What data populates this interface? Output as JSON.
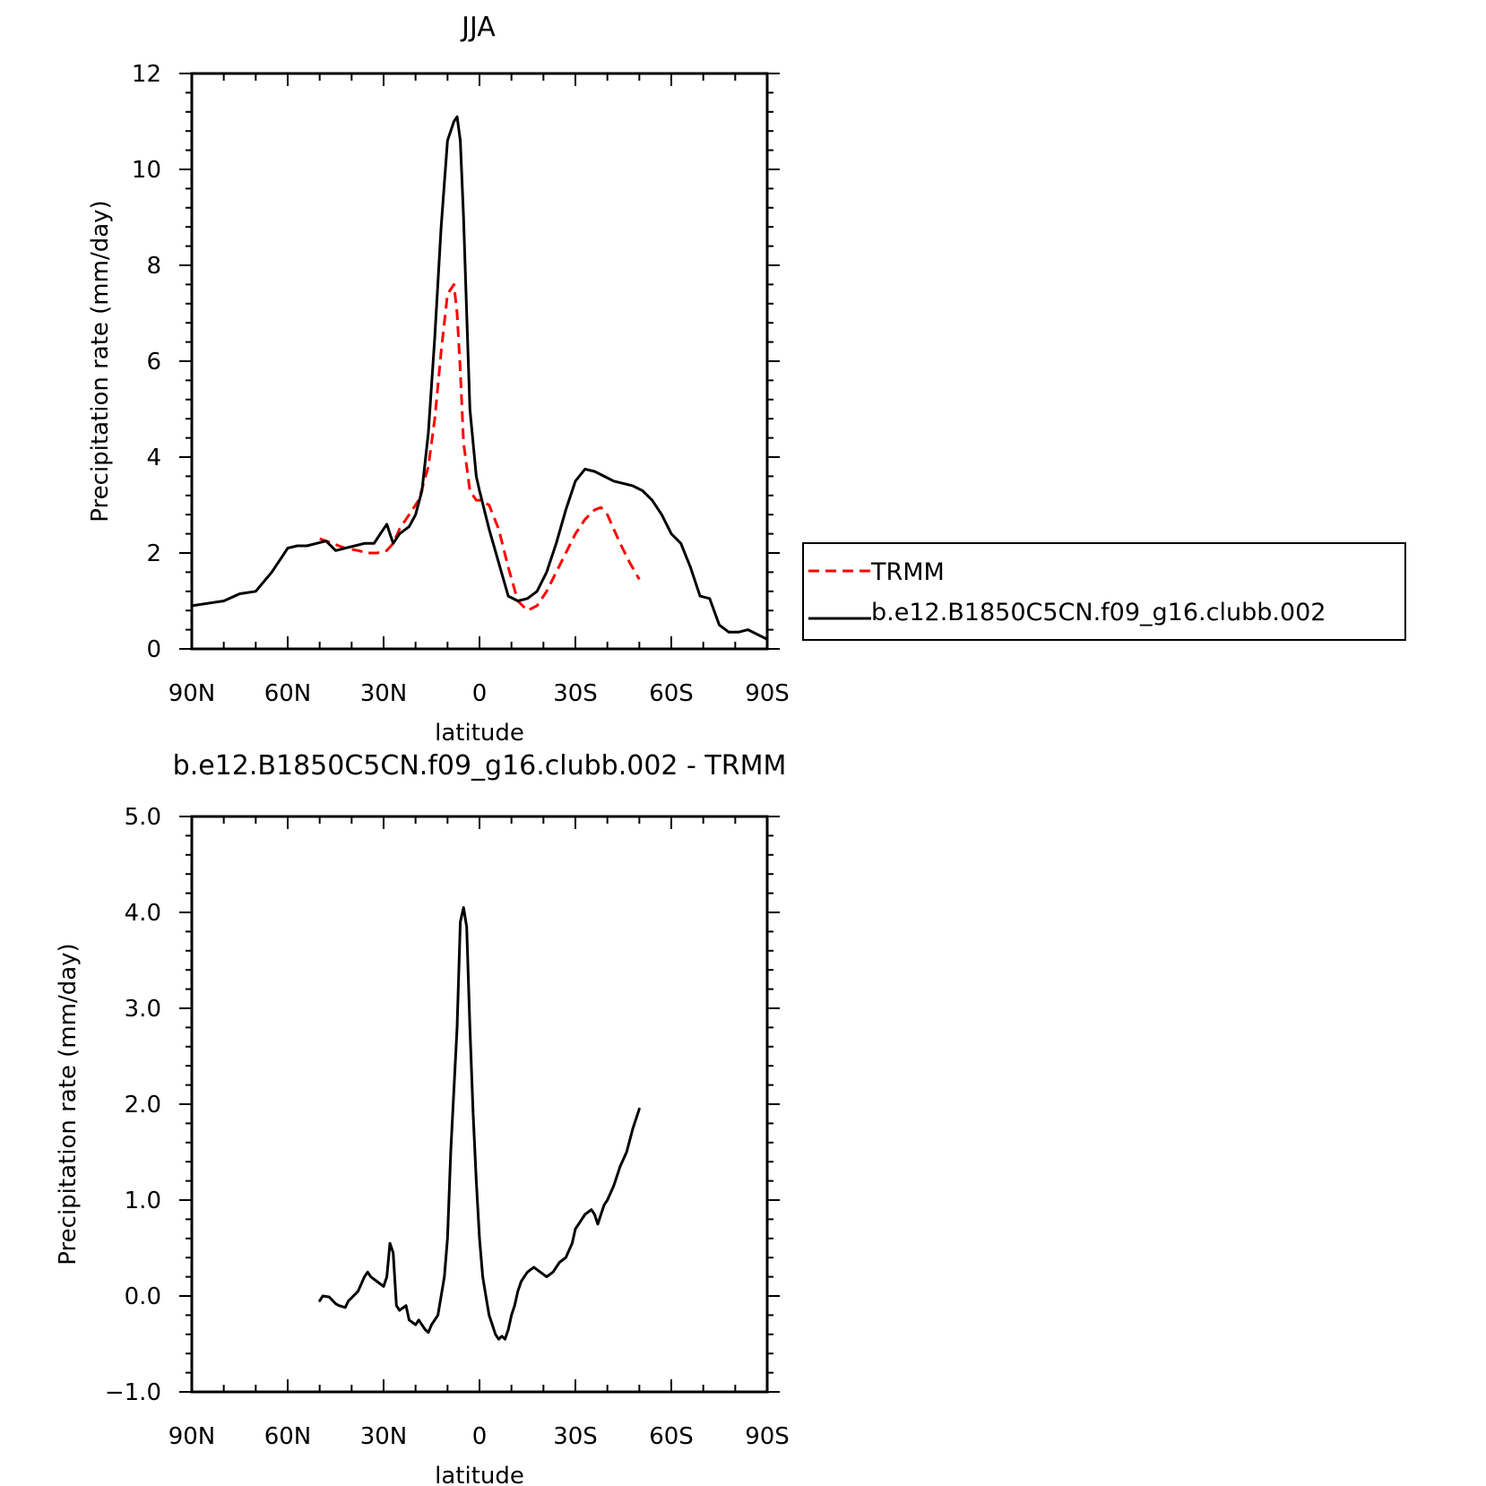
{
  "chart_data": [
    {
      "type": "line",
      "title": "JJA",
      "xlabel": "latitude",
      "ylabel": "Precipitation rate (mm/day)",
      "xlim": [
        90,
        -90
      ],
      "ylim": [
        0,
        12
      ],
      "xticks": [
        {
          "value": 90,
          "label": "90N"
        },
        {
          "value": 60,
          "label": "60N"
        },
        {
          "value": 30,
          "label": "30N"
        },
        {
          "value": 0,
          "label": "0"
        },
        {
          "value": -30,
          "label": "30S"
        },
        {
          "value": -60,
          "label": "60S"
        },
        {
          "value": -90,
          "label": "90S"
        }
      ],
      "yticks": [
        {
          "value": 0,
          "label": "0"
        },
        {
          "value": 2,
          "label": "2"
        },
        {
          "value": 4,
          "label": "4"
        },
        {
          "value": 6,
          "label": "6"
        },
        {
          "value": 8,
          "label": "8"
        },
        {
          "value": 10,
          "label": "10"
        },
        {
          "value": 12,
          "label": "12"
        }
      ],
      "legend": "right",
      "series": [
        {
          "name": "TRMM",
          "color": "#ff0000",
          "style": "dashed",
          "x": [
            50,
            46,
            42,
            38,
            35,
            32,
            29,
            27,
            25,
            22,
            19,
            16,
            14,
            12,
            10,
            8,
            7,
            6,
            5,
            3,
            1,
            0,
            -3,
            -6,
            -9,
            -12,
            -15,
            -18,
            -21,
            -24,
            -27,
            -30,
            -33,
            -36,
            -38,
            -40,
            -42,
            -44,
            -47,
            -50
          ],
          "y": [
            2.3,
            2.2,
            2.1,
            2.05,
            2.0,
            2.0,
            2.05,
            2.2,
            2.5,
            2.8,
            3.1,
            3.8,
            4.8,
            6.2,
            7.4,
            7.6,
            7.0,
            5.8,
            4.3,
            3.3,
            3.1,
            3.1,
            3.0,
            2.5,
            1.7,
            1.0,
            0.8,
            0.9,
            1.2,
            1.6,
            2.0,
            2.4,
            2.7,
            2.9,
            2.95,
            2.8,
            2.5,
            2.2,
            1.8,
            1.45
          ]
        },
        {
          "name": "b.e12.B1850C5CN.f09_g16.clubb.002",
          "color": "#000000",
          "style": "solid",
          "x": [
            90,
            85,
            80,
            75,
            70,
            65,
            62,
            60,
            57,
            54,
            51,
            48,
            45,
            42,
            39,
            36,
            33,
            31,
            29,
            28,
            27,
            25,
            22,
            20,
            18,
            16,
            14,
            12,
            10,
            8,
            7,
            6,
            5,
            4,
            3,
            1,
            0,
            -3,
            -6,
            -9,
            -12,
            -15,
            -18,
            -21,
            -24,
            -27,
            -30,
            -33,
            -36,
            -39,
            -42,
            -45,
            -48,
            -51,
            -54,
            -57,
            -60,
            -63,
            -66,
            -69,
            -72,
            -75,
            -78,
            -81,
            -84,
            -87,
            -90
          ],
          "y": [
            0.9,
            0.95,
            1.0,
            1.15,
            1.2,
            1.6,
            1.9,
            2.1,
            2.15,
            2.15,
            2.2,
            2.25,
            2.05,
            2.1,
            2.15,
            2.2,
            2.2,
            2.4,
            2.6,
            2.4,
            2.2,
            2.4,
            2.55,
            2.8,
            3.3,
            4.5,
            6.5,
            8.8,
            10.6,
            11.0,
            11.1,
            10.6,
            9.0,
            7.0,
            5.0,
            3.6,
            3.3,
            2.5,
            1.8,
            1.1,
            1.0,
            1.05,
            1.2,
            1.6,
            2.2,
            2.9,
            3.5,
            3.75,
            3.7,
            3.6,
            3.5,
            3.45,
            3.4,
            3.3,
            3.1,
            2.8,
            2.4,
            2.2,
            1.7,
            1.1,
            1.05,
            0.5,
            0.35,
            0.35,
            0.4,
            0.3,
            0.2
          ]
        }
      ]
    },
    {
      "type": "line",
      "title": "b.e12.B1850C5CN.f09_g16.clubb.002 - TRMM",
      "xlabel": "latitude",
      "ylabel": "Precipitation rate (mm/day)",
      "xlim": [
        90,
        -90
      ],
      "ylim": [
        -1,
        5
      ],
      "xticks": [
        {
          "value": 90,
          "label": "90N"
        },
        {
          "value": 60,
          "label": "60N"
        },
        {
          "value": 30,
          "label": "30N"
        },
        {
          "value": 0,
          "label": "0"
        },
        {
          "value": -30,
          "label": "30S"
        },
        {
          "value": -60,
          "label": "60S"
        },
        {
          "value": -90,
          "label": "90S"
        }
      ],
      "yticks": [
        {
          "value": -1,
          "label": "−1.0"
        },
        {
          "value": 0,
          "label": "0.0"
        },
        {
          "value": 1,
          "label": "1.0"
        },
        {
          "value": 2,
          "label": "2.0"
        },
        {
          "value": 3,
          "label": "3.0"
        },
        {
          "value": 4,
          "label": "4.0"
        },
        {
          "value": 5,
          "label": "5.0"
        }
      ],
      "series": [
        {
          "color": "#000000",
          "style": "solid",
          "x": [
            50,
            49,
            47,
            45,
            44,
            42,
            41,
            40,
            38,
            36,
            35,
            34,
            32,
            30,
            29,
            28,
            27,
            26,
            25,
            23,
            22,
            20,
            19,
            17,
            16,
            15,
            13,
            12,
            11,
            10,
            9,
            7,
            6,
            5,
            4,
            3,
            2,
            1,
            0,
            -1,
            -2,
            -3,
            -4,
            -5,
            -6,
            -7,
            -8,
            -9,
            -10,
            -11,
            -12,
            -13,
            -14,
            -15,
            -17,
            -19,
            -21,
            -23,
            -25,
            -27,
            -29,
            -30,
            -31,
            -33,
            -35,
            -36,
            -37,
            -38,
            -39,
            -40,
            -42,
            -44,
            -46,
            -48,
            -50
          ],
          "y": [
            -0.05,
            0.0,
            -0.01,
            -0.08,
            -0.1,
            -0.12,
            -0.05,
            -0.02,
            0.05,
            0.2,
            0.25,
            0.2,
            0.15,
            0.1,
            0.2,
            0.55,
            0.45,
            -0.1,
            -0.15,
            -0.1,
            -0.25,
            -0.3,
            -0.25,
            -0.35,
            -0.38,
            -0.3,
            -0.2,
            0.0,
            0.2,
            0.6,
            1.5,
            2.8,
            3.9,
            4.05,
            3.85,
            2.8,
            1.9,
            1.2,
            0.6,
            0.2,
            0.0,
            -0.2,
            -0.3,
            -0.4,
            -0.45,
            -0.42,
            -0.45,
            -0.35,
            -0.2,
            -0.1,
            0.05,
            0.15,
            0.2,
            0.25,
            0.3,
            0.25,
            0.2,
            0.25,
            0.35,
            0.4,
            0.55,
            0.7,
            0.75,
            0.85,
            0.9,
            0.85,
            0.75,
            0.85,
            0.95,
            1.0,
            1.15,
            1.35,
            1.5,
            1.75,
            1.95
          ]
        }
      ]
    }
  ]
}
